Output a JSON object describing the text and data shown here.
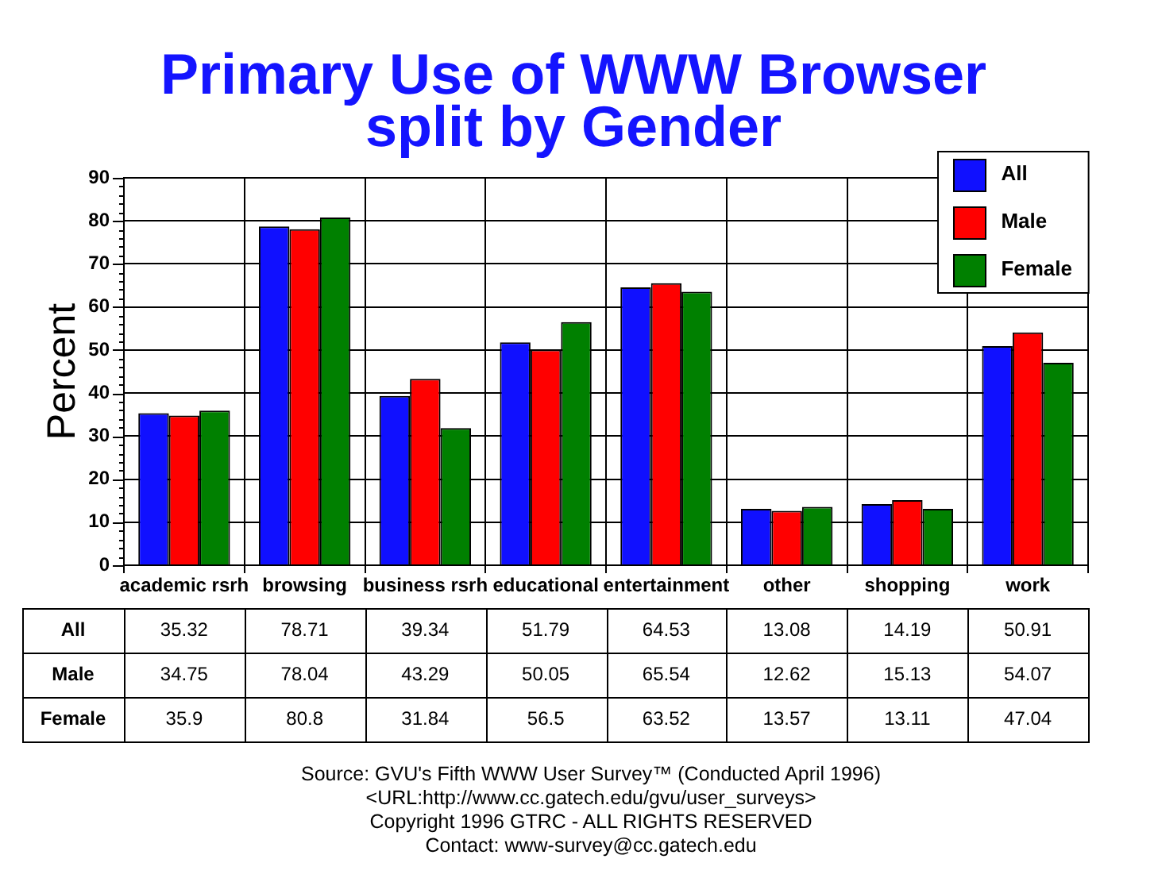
{
  "chart_data": {
    "type": "bar",
    "title": "Primary Use of WWW Browser split by Gender",
    "ylabel": "Percent",
    "categories": [
      "academic rsrh",
      "browsing",
      "business rsrh",
      "educational",
      "entertainment",
      "other",
      "shopping",
      "work"
    ],
    "series": [
      {
        "name": "All",
        "color": "#1010ff",
        "values": [
          35.32,
          78.71,
          39.34,
          51.79,
          64.53,
          13.08,
          14.19,
          50.91
        ]
      },
      {
        "name": "Male",
        "color": "#ff0000",
        "values": [
          34.75,
          78.04,
          43.29,
          50.05,
          65.54,
          12.62,
          15.13,
          54.07
        ]
      },
      {
        "name": "Female",
        "color": "#008000",
        "values": [
          35.9,
          80.8,
          31.84,
          56.5,
          63.52,
          13.57,
          13.11,
          47.04
        ]
      }
    ],
    "ylim": [
      0,
      90
    ],
    "yticks": [
      0,
      {
        "value": 2,
        "label": null
      },
      {
        "value": 4,
        "label": null
      },
      {
        "value": 6,
        "label": null
      },
      {
        "value": 8,
        "label": null
      },
      10,
      {
        "value": 12,
        "label": null
      },
      {
        "value": 14,
        "label": null
      },
      {
        "value": 16,
        "label": null
      },
      {
        "value": 18,
        "label": null
      },
      20,
      {
        "value": 22,
        "label": null
      },
      {
        "value": 24,
        "label": null
      },
      {
        "value": 26,
        "label": null
      },
      {
        "value": 28,
        "label": null
      },
      30,
      {
        "value": 32,
        "label": null
      },
      {
        "value": 34,
        "label": null
      },
      {
        "value": 36,
        "label": null
      },
      {
        "value": 38,
        "label": null
      },
      40,
      {
        "value": 42,
        "label": null
      },
      {
        "value": 44,
        "label": null
      },
      {
        "value": 46,
        "label": null
      },
      {
        "value": 48,
        "label": null
      },
      50,
      {
        "value": 52,
        "label": null
      },
      {
        "value": 54,
        "label": null
      },
      {
        "value": 56,
        "label": null
      },
      {
        "value": 58,
        "label": null
      },
      60,
      {
        "value": 62,
        "label": null
      },
      {
        "value": 64,
        "label": null
      },
      {
        "value": 66,
        "label": null
      },
      {
        "value": 68,
        "label": null
      },
      70,
      {
        "value": 72,
        "label": null
      },
      {
        "value": 74,
        "label": null
      },
      {
        "value": 76,
        "label": null
      },
      {
        "value": 78,
        "label": null
      },
      80,
      {
        "value": 82,
        "label": null
      },
      {
        "value": 84,
        "label": null
      },
      {
        "value": 86,
        "label": null
      },
      {
        "value": 88,
        "label": null
      },
      90
    ],
    "grid": true,
    "legend": "top right",
    "data_labels": true,
    "annotations": [
      "Source: GVU's Fifth WWW User Survey™ (Conducted April 1996)",
      "<URL:http://www.cc.gatech.edu/gvu/user_surveys>",
      "Copyright 1996 GTRC - ALL RIGHTS RESERVED",
      "Contact: www-survey@cc.gatech.edu"
    ]
  }
}
